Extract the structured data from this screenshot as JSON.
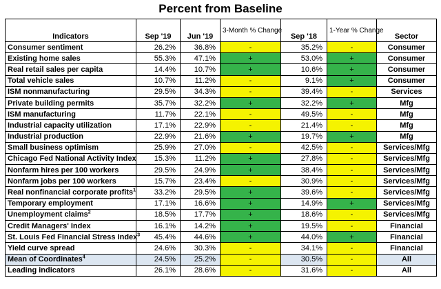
{
  "title": "Percent from Baseline",
  "headers": {
    "indicators": "Indicators",
    "sep19": "Sep '19",
    "jun19": "Jun '19",
    "three_month": "3-Month % Change",
    "sep18": "Sep '18",
    "one_year": "1-Year % Change",
    "sector": "Sector"
  },
  "colors": {
    "positive": "#35b34a",
    "negative": "#f5f300",
    "mean_row": "#dce6f1"
  },
  "rows": [
    {
      "name": "Consumer sentiment",
      "sup": "",
      "sep19": "26.2%",
      "jun19": "36.8%",
      "m3": "-",
      "sep18": "35.2%",
      "y1": "-",
      "sector": "Consumer",
      "m3_pos": false,
      "y1_pos": false
    },
    {
      "name": "Existing home sales",
      "sup": "",
      "sep19": "55.3%",
      "jun19": "47.1%",
      "m3": "+",
      "sep18": "53.0%",
      "y1": "+",
      "sector": "Consumer",
      "m3_pos": true,
      "y1_pos": true
    },
    {
      "name": "Real retail sales per capita",
      "sup": "",
      "sep19": "14.4%",
      "jun19": "10.7%",
      "m3": "+",
      "sep18": "10.6%",
      "y1": "+",
      "sector": "Consumer",
      "m3_pos": true,
      "y1_pos": true
    },
    {
      "name": "Total vehicle sales",
      "sup": "",
      "sep19": "10.7%",
      "jun19": "11.2%",
      "m3": "-",
      "sep18": "9.1%",
      "y1": "+",
      "sector": "Consumer",
      "m3_pos": false,
      "y1_pos": true
    },
    {
      "name": "ISM nonmanufacturing",
      "sup": "",
      "sep19": "29.5%",
      "jun19": "34.3%",
      "m3": "-",
      "sep18": "39.4%",
      "y1": "-",
      "sector": "Services",
      "m3_pos": false,
      "y1_pos": false
    },
    {
      "name": "Private building permits",
      "sup": "",
      "sep19": "35.7%",
      "jun19": "32.2%",
      "m3": "+",
      "sep18": "32.2%",
      "y1": "+",
      "sector": "Mfg",
      "m3_pos": true,
      "y1_pos": true
    },
    {
      "name": "ISM manufacturing",
      "sup": "",
      "sep19": "11.7%",
      "jun19": "22.1%",
      "m3": "-",
      "sep18": "49.5%",
      "y1": "-",
      "sector": "Mfg",
      "m3_pos": false,
      "y1_pos": false
    },
    {
      "name": "Industrial capacity utilization",
      "sup": "",
      "sep19": "17.1%",
      "jun19": "22.9%",
      "m3": "-",
      "sep18": "21.4%",
      "y1": "-",
      "sector": "Mfg",
      "m3_pos": false,
      "y1_pos": false
    },
    {
      "name": "Industrial production",
      "sup": "",
      "sep19": "22.9%",
      "jun19": "21.6%",
      "m3": "+",
      "sep18": "19.7%",
      "y1": "+",
      "sector": "Mfg",
      "m3_pos": true,
      "y1_pos": true
    },
    {
      "name": "Small business optimism",
      "sup": "",
      "sep19": "25.9%",
      "jun19": "27.0%",
      "m3": "-",
      "sep18": "42.5%",
      "y1": "-",
      "sector": "Services/Mfg",
      "m3_pos": false,
      "y1_pos": false
    },
    {
      "name": "Chicago Fed National Activity Index",
      "sup": "",
      "sep19": "15.3%",
      "jun19": "11.2%",
      "m3": "+",
      "sep18": "27.8%",
      "y1": "-",
      "sector": "Services/Mfg",
      "m3_pos": true,
      "y1_pos": false
    },
    {
      "name": "Nonfarm hires per 100 workers",
      "sup": "",
      "sep19": "29.5%",
      "jun19": "24.9%",
      "m3": "+",
      "sep18": "38.4%",
      "y1": "-",
      "sector": "Services/Mfg",
      "m3_pos": true,
      "y1_pos": false
    },
    {
      "name": "Nonfarm jobs per 100 workers",
      "sup": "",
      "sep19": "15.7%",
      "jun19": "23.4%",
      "m3": "-",
      "sep18": "30.9%",
      "y1": "-",
      "sector": "Services/Mfg",
      "m3_pos": false,
      "y1_pos": false
    },
    {
      "name": "Real nonfinancial corporate profits",
      "sup": "1",
      "sep19": "33.2%",
      "jun19": "29.5%",
      "m3": "+",
      "sep18": "39.6%",
      "y1": "-",
      "sector": "Services/Mfg",
      "m3_pos": true,
      "y1_pos": false
    },
    {
      "name": "Temporary employment",
      "sup": "",
      "sep19": "17.1%",
      "jun19": "16.6%",
      "m3": "+",
      "sep18": "14.9%",
      "y1": "+",
      "sector": "Services/Mfg",
      "m3_pos": true,
      "y1_pos": true
    },
    {
      "name": "Unemployment claims",
      "sup": "2",
      "sep19": "18.5%",
      "jun19": "17.7%",
      "m3": "+",
      "sep18": "18.6%",
      "y1": "-",
      "sector": "Services/Mfg",
      "m3_pos": true,
      "y1_pos": false
    },
    {
      "name": "Credit Managers' Index",
      "sup": "",
      "sep19": "16.1%",
      "jun19": "14.2%",
      "m3": "+",
      "sep18": "19.5%",
      "y1": "-",
      "sector": "Financial",
      "m3_pos": true,
      "y1_pos": false
    },
    {
      "name": "St. Louis Fed Financial Stress Index",
      "sup": "3",
      "sep19": "45.4%",
      "jun19": "44.6%",
      "m3": "+",
      "sep18": "44.0%",
      "y1": "+",
      "sector": "Financial",
      "m3_pos": true,
      "y1_pos": true
    },
    {
      "name": "Yield curve spread",
      "sup": "",
      "sep19": "24.6%",
      "jun19": "30.3%",
      "m3": "-",
      "sep18": "34.1%",
      "y1": "-",
      "sector": "Financial",
      "m3_pos": false,
      "y1_pos": false
    },
    {
      "name": "Mean of Coordinates",
      "sup": "4",
      "sep19": "24.5%",
      "jun19": "25.2%",
      "m3": "-",
      "sep18": "30.5%",
      "y1": "-",
      "sector": "All",
      "m3_pos": false,
      "y1_pos": false,
      "mean": true
    },
    {
      "name": "Leading indicators",
      "sup": "",
      "sep19": "26.1%",
      "jun19": "28.6%",
      "m3": "-",
      "sep18": "31.6%",
      "y1": "-",
      "sector": "All",
      "m3_pos": false,
      "y1_pos": false
    }
  ]
}
